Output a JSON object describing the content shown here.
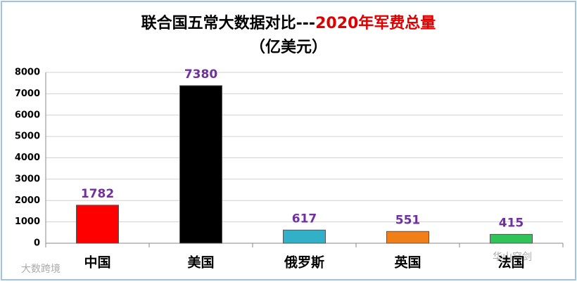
{
  "chart_data": {
    "type": "bar",
    "title": "联合国五常大数据对比---",
    "title_highlight": "2020年军费总量",
    "subtitle": "（亿美元）",
    "categories": [
      "中国",
      "美国",
      "俄罗斯",
      "英国",
      "法国"
    ],
    "values": [
      1782,
      7380,
      617,
      551,
      415
    ],
    "colors": [
      "#ff0000",
      "#000000",
      "#31b0c8",
      "#f07f1a",
      "#2fc35a"
    ],
    "label_color": "#7030a0",
    "ylim": [
      0,
      8000
    ],
    "yticks": [
      0,
      1000,
      2000,
      3000,
      4000,
      5000,
      6000,
      7000,
      8000
    ],
    "grid": true,
    "watermarks": [
      "大数跨境",
      "华山穹剑"
    ]
  }
}
